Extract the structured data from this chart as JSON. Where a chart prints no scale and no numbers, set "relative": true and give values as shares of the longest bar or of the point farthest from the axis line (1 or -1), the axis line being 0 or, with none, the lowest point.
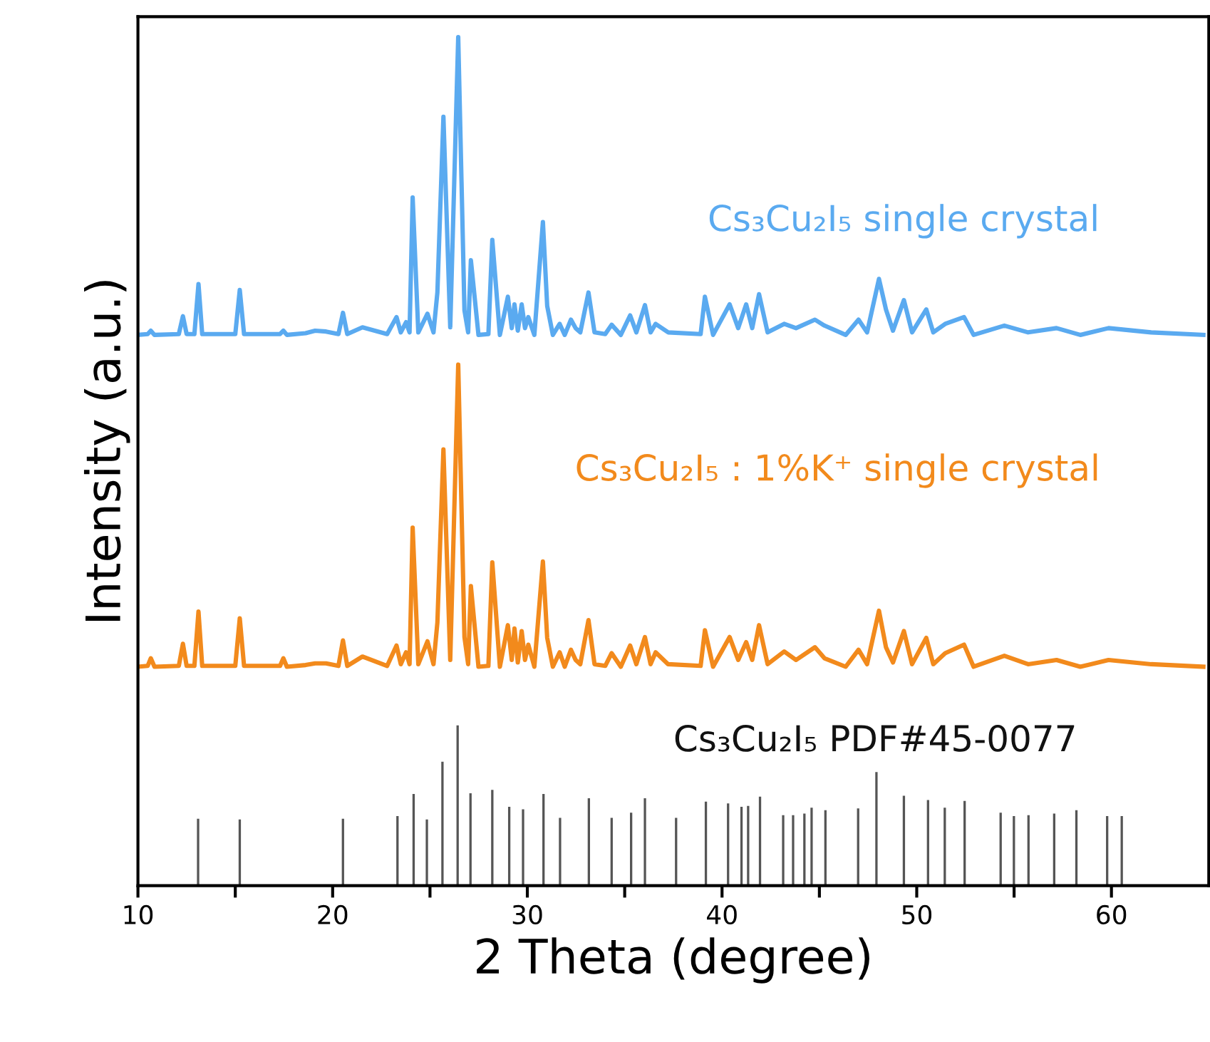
{
  "chart_data": {
    "type": "line",
    "relative": true,
    "xlabel": "2 Theta (degree)",
    "ylabel": "Intensity (a.u.)",
    "xlim": [
      10,
      65
    ],
    "xticks": [
      10,
      {
        "value": 15,
        "label": null
      },
      20,
      {
        "value": 25,
        "label": null
      },
      30,
      {
        "value": 35,
        "label": null
      },
      40,
      {
        "value": 45,
        "label": null
      },
      50,
      {
        "value": 55,
        "label": null
      },
      60
    ],
    "grid": false,
    "series": [
      {
        "name": "Cs₃Cu₂I₅ single crystal",
        "color": "#5aaaf0",
        "x": [
          10,
          10.5,
          10.66,
          10.85,
          12.1,
          12.31,
          12.5,
          12.9,
          13.11,
          13.3,
          15.0,
          15.23,
          15.45,
          17.3,
          17.47,
          17.65,
          18.61,
          19.1,
          19.66,
          20.3,
          20.53,
          20.75,
          21.53,
          22.8,
          23.28,
          23.5,
          23.77,
          23.95,
          24.11,
          24.4,
          24.87,
          25.18,
          25.38,
          25.69,
          26.04,
          26.45,
          26.77,
          26.96,
          27.1,
          27.49,
          28.0,
          28.2,
          28.59,
          29.0,
          29.2,
          29.34,
          29.51,
          29.71,
          29.88,
          30.05,
          30.36,
          30.8,
          31.02,
          31.31,
          31.66,
          31.92,
          32.24,
          32.48,
          32.72,
          33.14,
          33.45,
          34.0,
          34.33,
          34.8,
          35.28,
          35.6,
          36.04,
          36.33,
          36.59,
          37.23,
          38.9,
          39.12,
          39.54,
          40.39,
          40.83,
          41.24,
          41.55,
          41.9,
          42.34,
          43.19,
          43.8,
          44.77,
          45.26,
          46.35,
          47.01,
          47.45,
          48.06,
          48.42,
          48.78,
          49.34,
          49.76,
          50.49,
          50.85,
          51.46,
          52.43,
          52.92,
          54.5,
          55.72,
          57.18,
          58.4,
          59.85,
          62.04,
          64.72
        ],
        "values": [
          0.649,
          0.65,
          0.654,
          0.649,
          0.65,
          0.671,
          0.65,
          0.65,
          0.709,
          0.65,
          0.65,
          0.702,
          0.65,
          0.65,
          0.654,
          0.649,
          0.651,
          0.654,
          0.653,
          0.65,
          0.675,
          0.65,
          0.658,
          0.65,
          0.67,
          0.652,
          0.664,
          0.652,
          0.811,
          0.652,
          0.674,
          0.652,
          0.699,
          0.906,
          0.658,
          1.0,
          0.678,
          0.652,
          0.737,
          0.649,
          0.65,
          0.761,
          0.649,
          0.694,
          0.657,
          0.685,
          0.654,
          0.685,
          0.657,
          0.67,
          0.649,
          0.782,
          0.683,
          0.649,
          0.662,
          0.649,
          0.667,
          0.657,
          0.652,
          0.699,
          0.652,
          0.65,
          0.661,
          0.649,
          0.672,
          0.652,
          0.684,
          0.652,
          0.662,
          0.652,
          0.65,
          0.694,
          0.649,
          0.685,
          0.657,
          0.685,
          0.657,
          0.697,
          0.652,
          0.662,
          0.657,
          0.667,
          0.66,
          0.649,
          0.667,
          0.652,
          0.715,
          0.679,
          0.654,
          0.69,
          0.652,
          0.679,
          0.652,
          0.662,
          0.67,
          0.649,
          0.66,
          0.652,
          0.657,
          0.649,
          0.657,
          0.652,
          0.649
        ]
      },
      {
        "name": "Cs₃Cu₂I₅ : 1%K⁺ single crystal",
        "color": "#f28a1c",
        "x": [
          10,
          10.5,
          10.66,
          10.85,
          12.1,
          12.31,
          12.5,
          12.9,
          13.11,
          13.3,
          15.0,
          15.23,
          15.45,
          17.3,
          17.47,
          17.65,
          18.61,
          19.1,
          19.66,
          20.3,
          20.53,
          20.75,
          21.53,
          22.8,
          23.28,
          23.5,
          23.77,
          23.95,
          24.11,
          24.4,
          24.87,
          25.18,
          25.38,
          25.69,
          26.04,
          26.45,
          26.77,
          26.96,
          27.1,
          27.49,
          28.0,
          28.2,
          28.59,
          29.0,
          29.2,
          29.34,
          29.51,
          29.71,
          29.88,
          30.05,
          30.36,
          30.8,
          31.02,
          31.31,
          31.66,
          31.92,
          32.24,
          32.48,
          32.72,
          33.14,
          33.45,
          34.0,
          34.33,
          34.8,
          35.28,
          35.6,
          36.04,
          36.33,
          36.59,
          37.23,
          38.9,
          39.12,
          39.54,
          40.39,
          40.83,
          41.24,
          41.55,
          41.9,
          42.34,
          43.19,
          43.8,
          44.77,
          45.26,
          46.35,
          47.01,
          47.45,
          48.06,
          48.42,
          48.78,
          49.34,
          49.76,
          50.49,
          50.85,
          51.46,
          52.43,
          52.92,
          54.5,
          55.72,
          57.18,
          58.4,
          59.85,
          62.04,
          64.72
        ],
        "values": [
          0.258,
          0.259,
          0.268,
          0.258,
          0.259,
          0.285,
          0.259,
          0.259,
          0.323,
          0.259,
          0.259,
          0.315,
          0.259,
          0.259,
          0.268,
          0.258,
          0.26,
          0.262,
          0.262,
          0.259,
          0.289,
          0.259,
          0.27,
          0.259,
          0.283,
          0.261,
          0.275,
          0.261,
          0.422,
          0.261,
          0.288,
          0.261,
          0.31,
          0.514,
          0.266,
          0.614,
          0.293,
          0.261,
          0.353,
          0.258,
          0.259,
          0.381,
          0.258,
          0.307,
          0.266,
          0.303,
          0.263,
          0.3,
          0.266,
          0.284,
          0.258,
          0.382,
          0.292,
          0.258,
          0.275,
          0.258,
          0.278,
          0.266,
          0.261,
          0.313,
          0.261,
          0.259,
          0.274,
          0.258,
          0.283,
          0.261,
          0.293,
          0.261,
          0.275,
          0.261,
          0.259,
          0.301,
          0.258,
          0.293,
          0.266,
          0.287,
          0.266,
          0.307,
          0.261,
          0.276,
          0.266,
          0.281,
          0.268,
          0.258,
          0.278,
          0.261,
          0.324,
          0.281,
          0.263,
          0.3,
          0.261,
          0.292,
          0.261,
          0.274,
          0.284,
          0.258,
          0.271,
          0.261,
          0.266,
          0.258,
          0.266,
          0.261,
          0.258
        ]
      },
      {
        "name": "Cs₃Cu₂I₅ PDF#45-0077",
        "type": "bar",
        "color": "#555555",
        "x": [
          13.09,
          15.23,
          20.53,
          23.33,
          24.16,
          24.84,
          25.64,
          26.42,
          27.08,
          28.2,
          29.07,
          29.78,
          30.83,
          31.68,
          33.16,
          34.33,
          35.33,
          36.04,
          37.64,
          39.17,
          40.31,
          41.0,
          41.34,
          41.95,
          43.14,
          43.65,
          44.23,
          44.6,
          45.31,
          46.99,
          47.93,
          49.34,
          50.58,
          51.44,
          52.46,
          54.31,
          54.99,
          55.74,
          57.06,
          58.2,
          59.78,
          60.53
        ],
        "values": [
          0.079,
          0.078,
          0.079,
          0.082,
          0.108,
          0.078,
          0.146,
          0.189,
          0.109,
          0.113,
          0.093,
          0.09,
          0.108,
          0.08,
          0.103,
          0.08,
          0.086,
          0.103,
          0.08,
          0.099,
          0.097,
          0.093,
          0.094,
          0.105,
          0.083,
          0.083,
          0.085,
          0.092,
          0.089,
          0.091,
          0.134,
          0.106,
          0.101,
          0.092,
          0.1,
          0.086,
          0.082,
          0.083,
          0.085,
          0.089,
          0.082,
          0.082
        ]
      }
    ]
  }
}
